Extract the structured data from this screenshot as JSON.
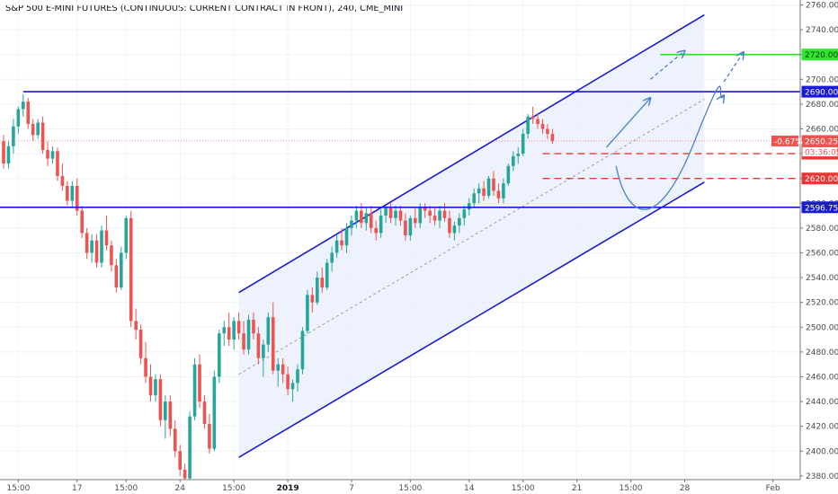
{
  "title": "S&P 500 E-MINI FUTURES (CONTINUOUS: CURRENT CONTRACT IN FRONT), 240, CME_MINI",
  "colors": {
    "up": "#26a69a",
    "down": "#ef5350",
    "channel": "#1a1ad6",
    "level": "#1a1ad6",
    "target": "#2ee62e",
    "dashed_red": "#e53935",
    "arrow": "#4a80c8",
    "price_line": "#ef5350",
    "channel_fill": "#e8eefb"
  },
  "chart_data": {
    "type": "candlestick",
    "ylim": [
      2377,
      2764
    ],
    "y_ticks": [
      2380,
      2400,
      2420,
      2440,
      2460,
      2480,
      2500,
      2520,
      2540,
      2560,
      2580,
      2600,
      2620,
      2640,
      2660,
      2680,
      2700,
      2720,
      2740,
      2760
    ],
    "x_ticks": [
      {
        "label": "15:00",
        "bar": 3,
        "bold": false
      },
      {
        "label": "17",
        "bar": 15,
        "bold": false
      },
      {
        "label": "15:00",
        "bar": 25,
        "bold": false
      },
      {
        "label": "24",
        "bar": 36,
        "bold": false
      },
      {
        "label": "15:00",
        "bar": 47,
        "bold": false
      },
      {
        "label": "2019",
        "bar": 58,
        "bold": true
      },
      {
        "label": "7",
        "bar": 71,
        "bold": false
      },
      {
        "label": "15:00",
        "bar": 83,
        "bold": false
      },
      {
        "label": "14",
        "bar": 95,
        "bold": false
      },
      {
        "label": "15:00",
        "bar": 106,
        "bold": false
      },
      {
        "label": "21",
        "bar": 117,
        "bold": false
      },
      {
        "label": "15:00",
        "bar": 128,
        "bold": false
      },
      {
        "label": "28",
        "bar": 139,
        "bold": false
      },
      {
        "label": "Feb",
        "bar": 157,
        "bold": false
      }
    ],
    "candles": [
      [
        2650,
        2655,
        2628,
        2632
      ],
      [
        2632,
        2650,
        2628,
        2646
      ],
      [
        2646,
        2668,
        2640,
        2662
      ],
      [
        2662,
        2678,
        2656,
        2676
      ],
      [
        2676,
        2688,
        2670,
        2682
      ],
      [
        2682,
        2685,
        2660,
        2664
      ],
      [
        2664,
        2668,
        2650,
        2655
      ],
      [
        2655,
        2668,
        2652,
        2665
      ],
      [
        2665,
        2670,
        2640,
        2643
      ],
      [
        2643,
        2650,
        2630,
        2636
      ],
      [
        2636,
        2646,
        2632,
        2642
      ],
      [
        2642,
        2645,
        2618,
        2622
      ],
      [
        2622,
        2632,
        2610,
        2614
      ],
      [
        2614,
        2618,
        2598,
        2602
      ],
      [
        2602,
        2618,
        2596,
        2614
      ],
      [
        2614,
        2620,
        2590,
        2594
      ],
      [
        2594,
        2598,
        2572,
        2576
      ],
      [
        2576,
        2580,
        2555,
        2560
      ],
      [
        2560,
        2575,
        2552,
        2570
      ],
      [
        2570,
        2575,
        2548,
        2552
      ],
      [
        2552,
        2582,
        2548,
        2578
      ],
      [
        2578,
        2590,
        2562,
        2566
      ],
      [
        2566,
        2570,
        2545,
        2550
      ],
      [
        2550,
        2555,
        2528,
        2532
      ],
      [
        2532,
        2565,
        2530,
        2560
      ],
      [
        2560,
        2590,
        2555,
        2588
      ],
      [
        2588,
        2594,
        2500,
        2505
      ],
      [
        2505,
        2515,
        2490,
        2498
      ],
      [
        2498,
        2502,
        2470,
        2475
      ],
      [
        2475,
        2488,
        2455,
        2460
      ],
      [
        2460,
        2470,
        2440,
        2445
      ],
      [
        2445,
        2462,
        2440,
        2458
      ],
      [
        2458,
        2462,
        2420,
        2425
      ],
      [
        2425,
        2445,
        2410,
        2440
      ],
      [
        2440,
        2445,
        2412,
        2418
      ],
      [
        2418,
        2425,
        2395,
        2400
      ],
      [
        2400,
        2405,
        2380,
        2385
      ],
      [
        2385,
        2390,
        2370,
        2378
      ],
      [
        2378,
        2432,
        2375,
        2428
      ],
      [
        2428,
        2475,
        2425,
        2470
      ],
      [
        2470,
        2478,
        2435,
        2440
      ],
      [
        2440,
        2445,
        2418,
        2422
      ],
      [
        2422,
        2430,
        2398,
        2402
      ],
      [
        2402,
        2465,
        2400,
        2460
      ],
      [
        2460,
        2498,
        2455,
        2495
      ],
      [
        2495,
        2505,
        2485,
        2500
      ],
      [
        2500,
        2512,
        2485,
        2490
      ],
      [
        2490,
        2508,
        2482,
        2505
      ],
      [
        2505,
        2512,
        2490,
        2495
      ],
      [
        2495,
        2505,
        2478,
        2482
      ],
      [
        2482,
        2510,
        2478,
        2506
      ],
      [
        2506,
        2512,
        2490,
        2495
      ],
      [
        2495,
        2500,
        2470,
        2475
      ],
      [
        2475,
        2490,
        2460,
        2486
      ],
      [
        2486,
        2512,
        2480,
        2508
      ],
      [
        2508,
        2520,
        2462,
        2465
      ],
      [
        2465,
        2475,
        2452,
        2470
      ],
      [
        2470,
        2475,
        2455,
        2462
      ],
      [
        2462,
        2468,
        2445,
        2450
      ],
      [
        2450,
        2458,
        2440,
        2455
      ],
      [
        2455,
        2470,
        2448,
        2466
      ],
      [
        2466,
        2500,
        2462,
        2497
      ],
      [
        2497,
        2530,
        2495,
        2526
      ],
      [
        2526,
        2532,
        2512,
        2520
      ],
      [
        2520,
        2545,
        2518,
        2540
      ],
      [
        2540,
        2548,
        2528,
        2532
      ],
      [
        2532,
        2555,
        2530,
        2552
      ],
      [
        2552,
        2565,
        2545,
        2560
      ],
      [
        2560,
        2575,
        2556,
        2570
      ],
      [
        2570,
        2580,
        2562,
        2566
      ],
      [
        2566,
        2584,
        2560,
        2580
      ],
      [
        2580,
        2590,
        2574,
        2586
      ],
      [
        2586,
        2598,
        2580,
        2594
      ],
      [
        2594,
        2600,
        2580,
        2584
      ],
      [
        2584,
        2596,
        2578,
        2592
      ],
      [
        2592,
        2598,
        2576,
        2580
      ],
      [
        2580,
        2586,
        2570,
        2576
      ],
      [
        2576,
        2595,
        2572,
        2590
      ],
      [
        2590,
        2598,
        2584,
        2596
      ],
      [
        2596,
        2600,
        2584,
        2588
      ],
      [
        2588,
        2598,
        2582,
        2594
      ],
      [
        2594,
        2598,
        2582,
        2586
      ],
      [
        2586,
        2592,
        2570,
        2574
      ],
      [
        2574,
        2590,
        2570,
        2588
      ],
      [
        2588,
        2596,
        2580,
        2584
      ],
      [
        2584,
        2600,
        2580,
        2597
      ],
      [
        2597,
        2600,
        2588,
        2594
      ],
      [
        2594,
        2598,
        2584,
        2590
      ],
      [
        2590,
        2596,
        2582,
        2586
      ],
      [
        2586,
        2598,
        2580,
        2594
      ],
      [
        2594,
        2600,
        2585,
        2588
      ],
      [
        2588,
        2594,
        2572,
        2576
      ],
      [
        2576,
        2585,
        2570,
        2582
      ],
      [
        2582,
        2592,
        2576,
        2588
      ],
      [
        2588,
        2598,
        2582,
        2595
      ],
      [
        2595,
        2604,
        2590,
        2600
      ],
      [
        2600,
        2612,
        2596,
        2608
      ],
      [
        2608,
        2616,
        2600,
        2612
      ],
      [
        2612,
        2618,
        2602,
        2606
      ],
      [
        2606,
        2622,
        2604,
        2620
      ],
      [
        2620,
        2626,
        2606,
        2610
      ],
      [
        2610,
        2616,
        2600,
        2604
      ],
      [
        2604,
        2620,
        2600,
        2616
      ],
      [
        2616,
        2632,
        2614,
        2630
      ],
      [
        2630,
        2642,
        2626,
        2638
      ],
      [
        2638,
        2645,
        2632,
        2640
      ],
      [
        2640,
        2660,
        2638,
        2656
      ],
      [
        2656,
        2672,
        2652,
        2670
      ],
      [
        2670,
        2678,
        2664,
        2668
      ],
      [
        2668,
        2672,
        2660,
        2664
      ],
      [
        2664,
        2668,
        2656,
        2660
      ],
      [
        2660,
        2664,
        2652,
        2656
      ],
      [
        2656,
        2660,
        2648,
        2650.25
      ]
    ],
    "channel": {
      "upper": [
        [
          48,
          2528
        ],
        [
          143,
          2752
        ]
      ],
      "lower": [
        [
          48,
          2395
        ],
        [
          143,
          2617
        ]
      ],
      "mid": [
        [
          48,
          2462
        ],
        [
          143,
          2684
        ]
      ]
    },
    "levels": [
      {
        "price": 2690.0,
        "label": "2690.00",
        "from": 4
      },
      {
        "price": 2596.75,
        "label": "2596.75",
        "from": -2
      }
    ],
    "target": {
      "price": 2720.0,
      "label": "2720.00",
      "from": 134
    },
    "dashed_levels": [
      {
        "price": 2640.0,
        "label": "2640.00",
        "from": 110
      },
      {
        "price": 2620.0,
        "label": "2620.00",
        "from": 110
      }
    ],
    "current": {
      "price": 2650.25,
      "label": "2650.25",
      "change": "-0.67%",
      "countdown": "03:36:05"
    }
  }
}
